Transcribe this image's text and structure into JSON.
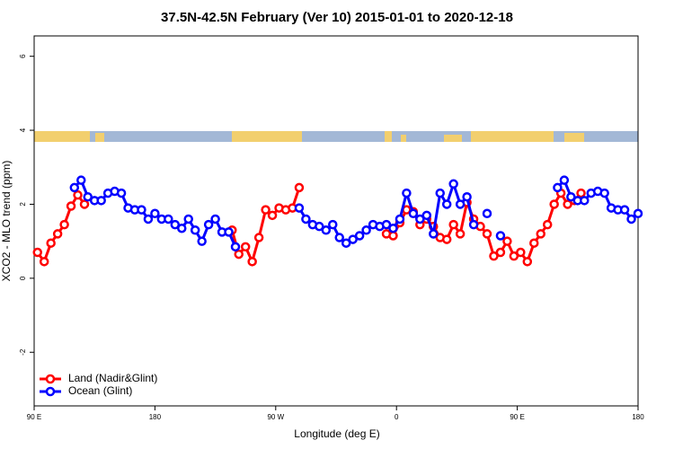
{
  "chart_data": {
    "type": "line",
    "title": "37.5N-42.5N February (Ver 10)   2015-01-01 to 2020-12-18",
    "x_label": "Longitude (deg E)",
    "y_label": "XCO2 - MLO trend (ppm)",
    "xlim": [
      90,
      540
    ],
    "xticks": [
      {
        "value": 90,
        "label": "90 E"
      },
      {
        "value": 180,
        "label": "180"
      },
      {
        "value": 270,
        "label": "90 W"
      },
      {
        "value": 360,
        "label": "0"
      },
      {
        "value": 450,
        "label": "90 E"
      },
      {
        "value": 540,
        "label": "180"
      }
    ],
    "ylim": [
      -3.45,
      6.55
    ],
    "yticks": [
      -2,
      0,
      2,
      4,
      6
    ],
    "legend": "bottom-left",
    "series": [
      {
        "name": "Land (Nadir&Glint)",
        "color": "#ff0000",
        "x": [
          92.5,
          97.5,
          102.5,
          107.5,
          112.5,
          117.5,
          122.5,
          127.5,
          132.5,
          237.5,
          242.5,
          247.5,
          252.5,
          257.5,
          262.5,
          267.5,
          272.5,
          277.5,
          282.5,
          287.5,
          292.5,
          352.5,
          357.5,
          362.5,
          367.5,
          372.5,
          377.5,
          382.5,
          387.5,
          392.5,
          397.5,
          402.5,
          407.5,
          412.5,
          417.5,
          422.5,
          427.5,
          432.5,
          437.5,
          442.5,
          447.5,
          452.5,
          457.5,
          462.5,
          467.5,
          472.5,
          477.5,
          482.5,
          487.5,
          492.5,
          497.5
        ],
        "values": [
          0.7,
          0.45,
          0.95,
          1.2,
          1.45,
          1.95,
          2.25,
          2.0,
          null,
          1.3,
          0.65,
          0.85,
          0.45,
          1.1,
          1.85,
          1.7,
          1.9,
          1.85,
          1.9,
          2.45,
          null,
          1.2,
          1.15,
          1.5,
          1.85,
          1.8,
          1.45,
          1.6,
          1.4,
          1.1,
          1.05,
          1.45,
          1.2,
          2.05,
          1.6,
          1.4,
          1.2,
          0.6,
          0.7,
          1.0,
          0.6,
          0.7,
          0.45,
          0.95,
          1.2,
          1.45,
          2.0,
          2.3,
          2.0,
          2.1,
          2.3
        ]
      },
      {
        "name": "Ocean (Glint)",
        "color": "#0000ff",
        "x": [
          120,
          125,
          130,
          135,
          140,
          145,
          150,
          155,
          160,
          165,
          170,
          175,
          180,
          185,
          190,
          195,
          200,
          205,
          210,
          215,
          220,
          225,
          230,
          235,
          240,
          245,
          287.5,
          292.5,
          297.5,
          302.5,
          307.5,
          312.5,
          317.5,
          322.5,
          327.5,
          332.5,
          337.5,
          342.5,
          347.5,
          352.5,
          357.5,
          362.5,
          367.5,
          372.5,
          377.5,
          382.5,
          387.5,
          392.5,
          397.5,
          402.5,
          407.5,
          412.5,
          417.5,
          422.5,
          427.5,
          432.5,
          437.5,
          442.5,
          480,
          485,
          490,
          495,
          500,
          505,
          510,
          515,
          520,
          525,
          530,
          535,
          540
        ],
        "values": [
          2.45,
          2.65,
          2.2,
          2.1,
          2.1,
          2.3,
          2.35,
          2.3,
          1.9,
          1.85,
          1.85,
          1.6,
          1.75,
          1.6,
          1.6,
          1.45,
          1.35,
          1.6,
          1.3,
          1.0,
          1.45,
          1.6,
          1.25,
          1.25,
          0.85,
          null,
          1.9,
          1.6,
          1.45,
          1.4,
          1.3,
          1.45,
          1.1,
          0.95,
          1.05,
          1.15,
          1.3,
          1.45,
          1.4,
          1.45,
          1.35,
          1.6,
          2.3,
          1.75,
          1.6,
          1.7,
          1.2,
          2.3,
          2.0,
          2.55,
          2.0,
          2.2,
          1.45,
          null,
          1.75,
          null,
          1.15,
          null,
          2.45,
          2.65,
          2.2,
          2.1,
          2.1,
          2.3,
          2.35,
          2.3,
          1.9,
          1.85,
          1.85,
          1.6,
          1.75
        ]
      }
    ]
  }
}
